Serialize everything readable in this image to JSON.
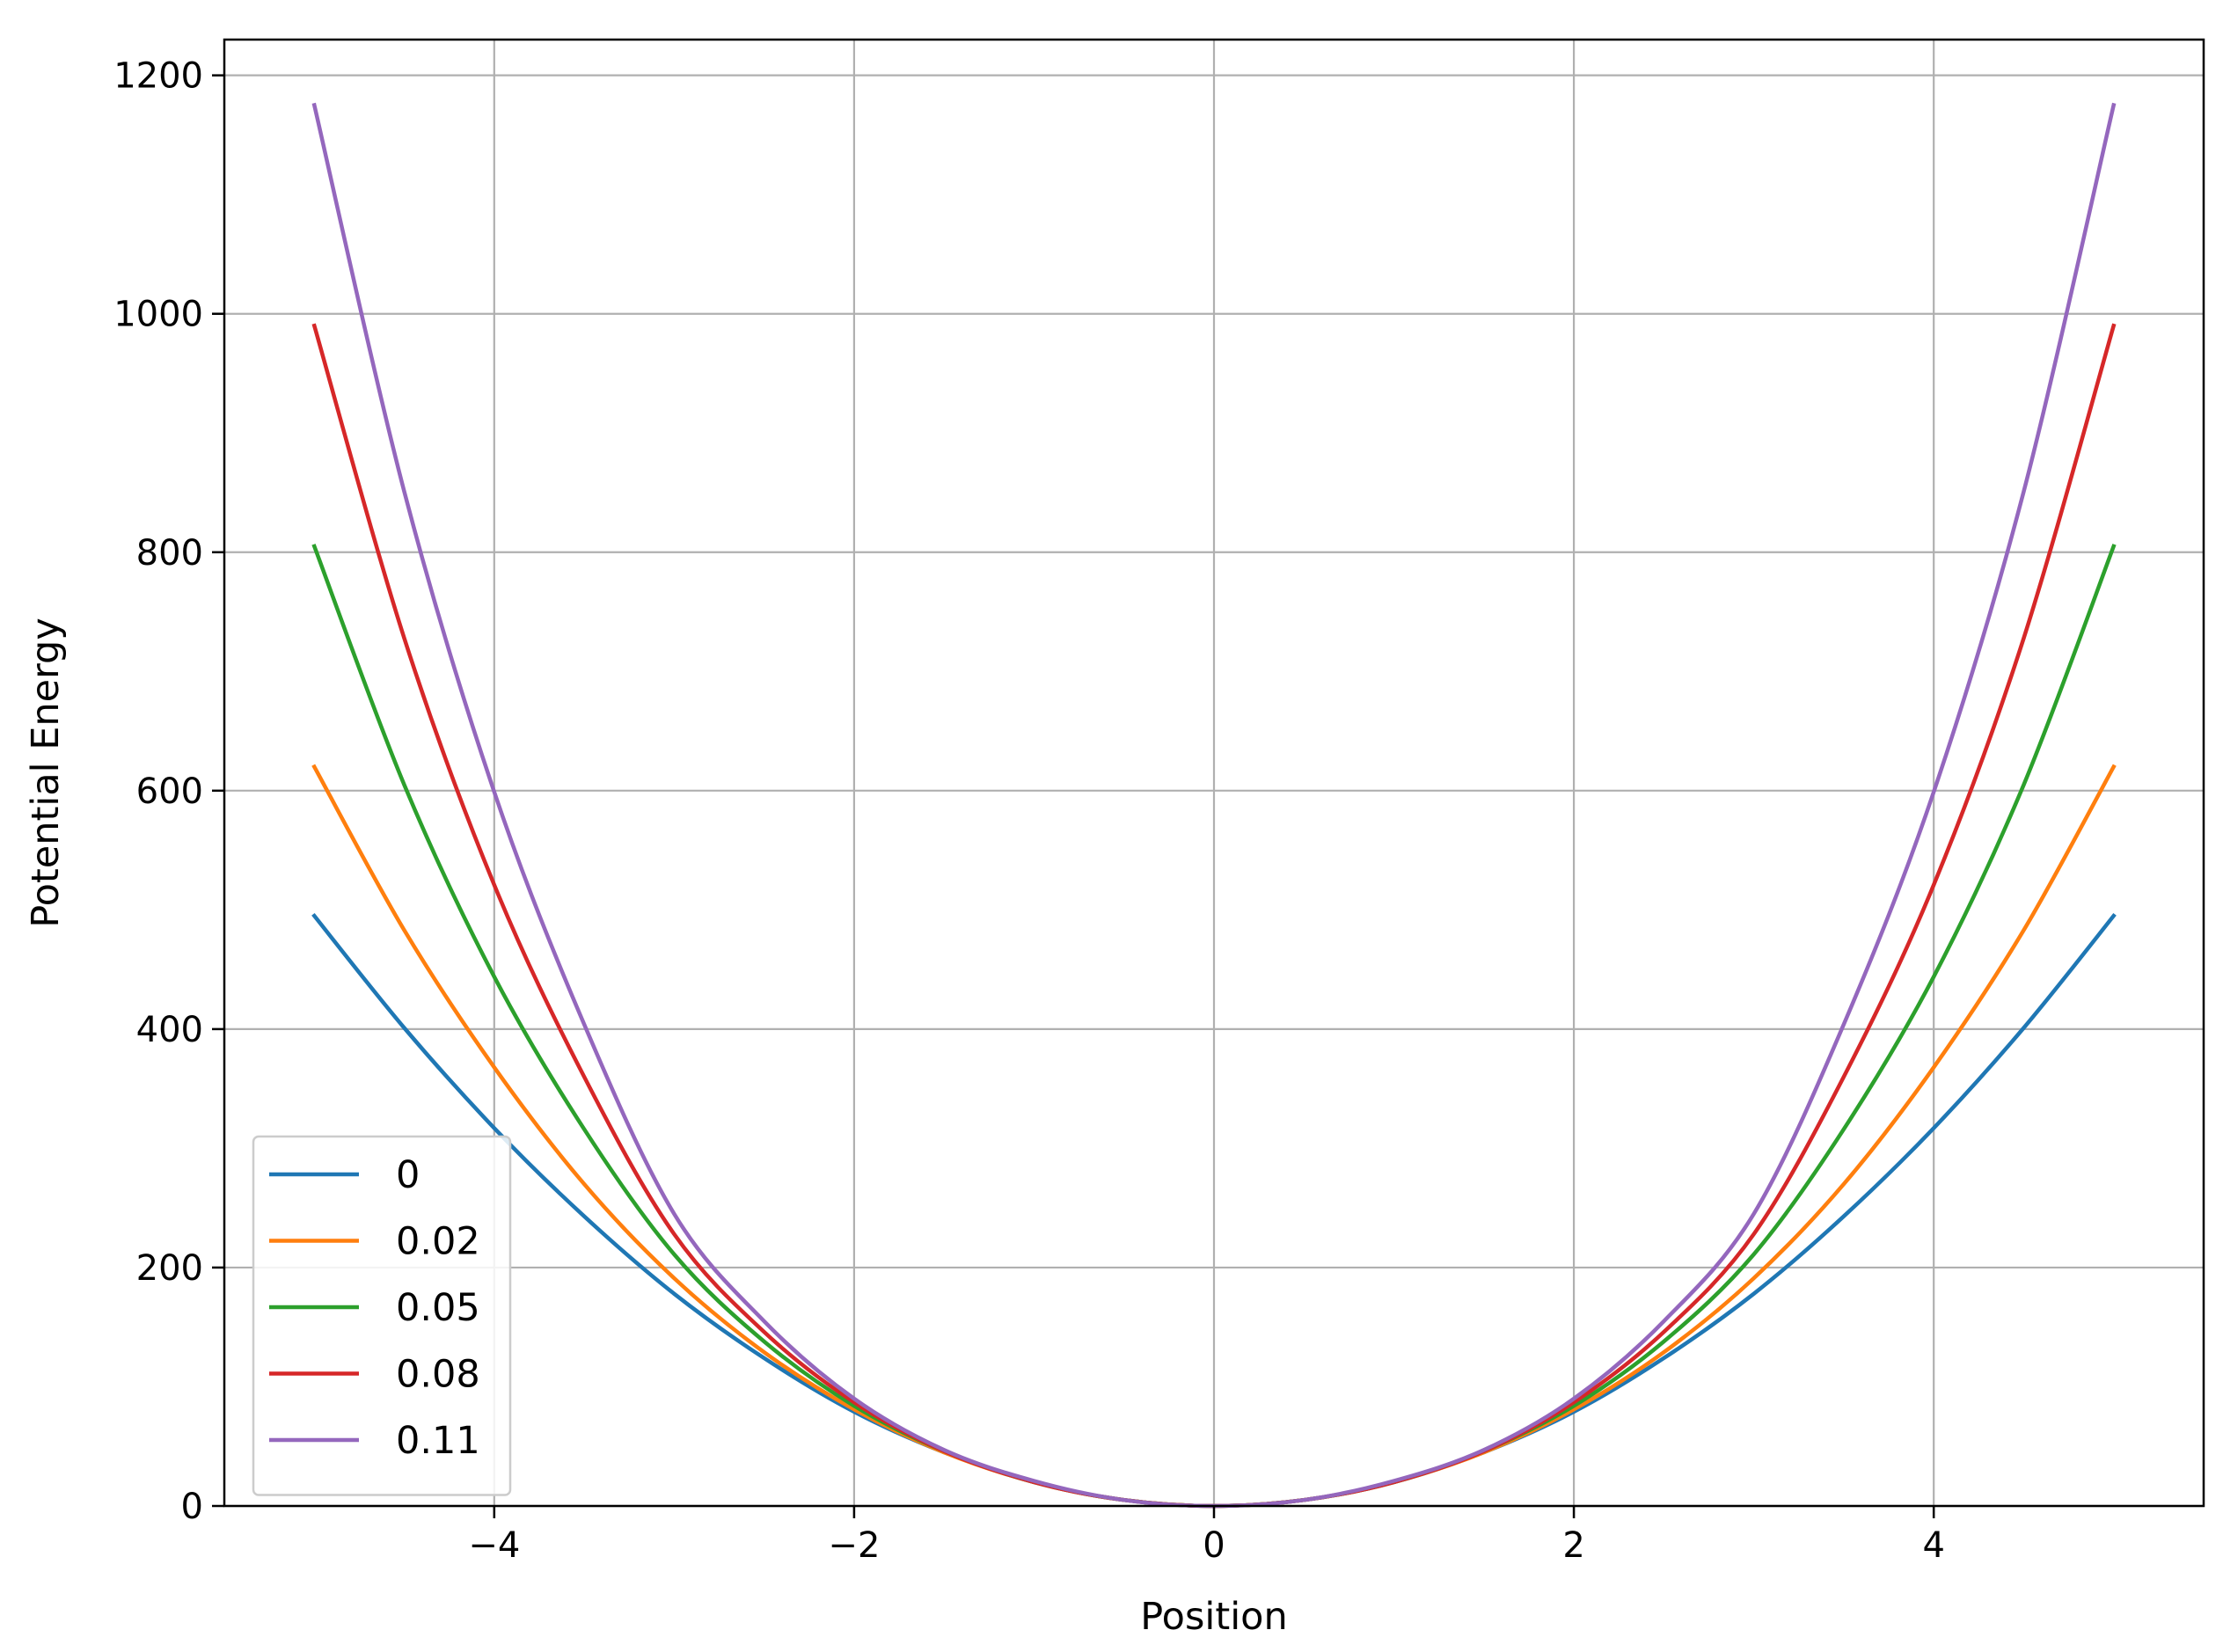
{
  "chart_data": {
    "type": "line",
    "title": "",
    "xlabel": "Position",
    "ylabel": "Potential Energy",
    "xlim": [
      -5.5,
      5.5
    ],
    "ylim": [
      0,
      1230
    ],
    "x_ticks": [
      -4,
      -2,
      0,
      2,
      4
    ],
    "x_tick_labels": [
      "−4",
      "−2",
      "0",
      "2",
      "4"
    ],
    "y_ticks": [
      0,
      200,
      400,
      600,
      800,
      1000,
      1200
    ],
    "y_tick_labels": [
      "0",
      "200",
      "400",
      "600",
      "800",
      "1000",
      "1200"
    ],
    "grid": true,
    "legend_position": "lower-left",
    "x": [
      -5,
      -4.5,
      -4,
      -3.5,
      -3,
      -2.5,
      -2,
      -1.5,
      -1,
      -0.5,
      0,
      0.5,
      1,
      1.5,
      2,
      2.5,
      3,
      3.5,
      4,
      4.5,
      5
    ],
    "series": [
      {
        "name": "0",
        "color": "#1f77b4",
        "values": [
          495,
          401,
          317,
          243,
          178,
          124,
          79,
          45,
          20,
          5,
          0,
          5,
          20,
          45,
          79,
          124,
          178,
          243,
          317,
          401,
          495
        ]
      },
      {
        "name": "0.02",
        "color": "#ff7f0e",
        "values": [
          620,
          483,
          368,
          270,
          191,
          129,
          81,
          45,
          20,
          5,
          0,
          5,
          20,
          45,
          81,
          129,
          191,
          270,
          368,
          483,
          620
        ]
      },
      {
        "name": "0.05",
        "color": "#2ca02c",
        "values": [
          805,
          605,
          444,
          316,
          211,
          138,
          84,
          46,
          20,
          5,
          0,
          5,
          20,
          46,
          84,
          138,
          211,
          316,
          444,
          605,
          805
        ]
      },
      {
        "name": "0.08",
        "color": "#d62728",
        "values": [
          990,
          728,
          521,
          360,
          228,
          146,
          87,
          46,
          20,
          5,
          0,
          5,
          20,
          46,
          87,
          146,
          228,
          360,
          521,
          728,
          990
        ]
      },
      {
        "name": "0.11",
        "color": "#9467bd",
        "values": [
          1175,
          851,
          599,
          404,
          245,
          155,
          90,
          47,
          21,
          5,
          0,
          5,
          21,
          47,
          90,
          155,
          245,
          404,
          599,
          851,
          1175
        ]
      }
    ]
  }
}
